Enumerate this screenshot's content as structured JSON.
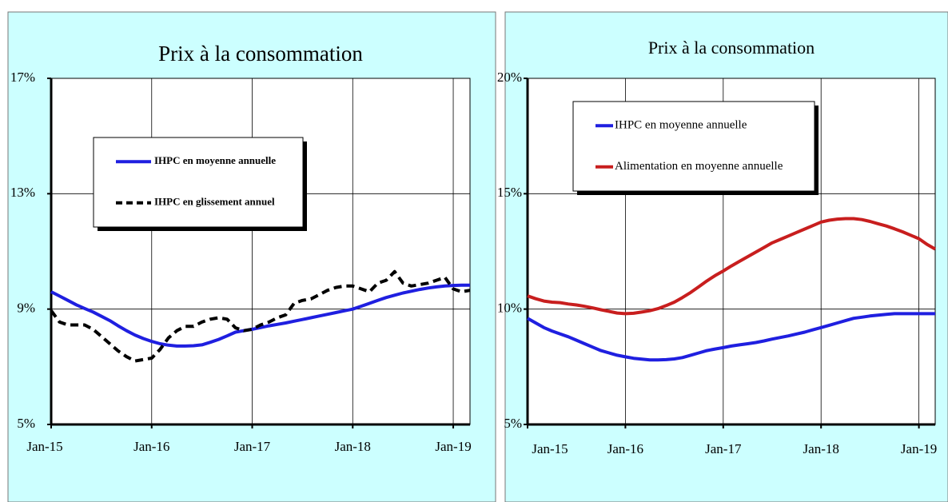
{
  "chart_data": [
    {
      "type": "line",
      "title": "Prix à la consommation",
      "categories": [
        "Jan-15",
        null,
        null,
        null,
        null,
        null,
        null,
        null,
        null,
        null,
        null,
        null,
        "Jan-16",
        null,
        null,
        null,
        null,
        null,
        null,
        null,
        null,
        null,
        null,
        null,
        "Jan-17",
        null,
        null,
        null,
        null,
        null,
        null,
        null,
        null,
        null,
        null,
        null,
        "Jan-18",
        null,
        null,
        null,
        null,
        null,
        null,
        null,
        null,
        null,
        null,
        null,
        "Jan-19",
        null,
        null
      ],
      "ylim": [
        5,
        17
      ],
      "yticks": [
        {
          "value": 5,
          "label": "5%"
        },
        {
          "value": 9,
          "label": "9%"
        },
        {
          "value": 13,
          "label": "13%"
        },
        {
          "value": 17,
          "label": "17%"
        }
      ],
      "grid": true,
      "series": [
        {
          "name": "IHPC en moyenne annuelle",
          "color": "#1f1fe0",
          "dash": false,
          "values": [
            9.6,
            9.45,
            9.3,
            9.15,
            9.02,
            8.9,
            8.75,
            8.6,
            8.42,
            8.25,
            8.1,
            7.98,
            7.88,
            7.8,
            7.75,
            7.72,
            7.72,
            7.73,
            7.76,
            7.85,
            7.95,
            8.07,
            8.2,
            8.25,
            8.3,
            8.36,
            8.42,
            8.47,
            8.52,
            8.58,
            8.64,
            8.7,
            8.76,
            8.82,
            8.88,
            8.94,
            9.0,
            9.1,
            9.2,
            9.3,
            9.4,
            9.48,
            9.56,
            9.62,
            9.68,
            9.73,
            9.77,
            9.8,
            9.82,
            9.83,
            9.83
          ]
        },
        {
          "name": "IHPC en glissement annuel",
          "color": "#000000",
          "dash": true,
          "values": [
            8.95,
            8.55,
            8.45,
            8.45,
            8.45,
            8.3,
            8.05,
            7.8,
            7.55,
            7.35,
            7.2,
            7.25,
            7.3,
            7.6,
            8.0,
            8.25,
            8.4,
            8.4,
            8.55,
            8.65,
            8.7,
            8.65,
            8.35,
            8.25,
            8.3,
            8.45,
            8.55,
            8.7,
            8.8,
            9.2,
            9.3,
            9.35,
            9.5,
            9.65,
            9.75,
            9.8,
            9.8,
            9.7,
            9.6,
            9.9,
            10.0,
            10.3,
            9.9,
            9.8,
            9.85,
            9.9,
            10.0,
            10.1,
            9.7,
            9.6,
            9.65
          ]
        }
      ]
    },
    {
      "type": "line",
      "title": "Prix à la consommation",
      "categories": [
        "Jan-15",
        null,
        null,
        null,
        null,
        null,
        null,
        null,
        null,
        null,
        null,
        null,
        "Jan-16",
        null,
        null,
        null,
        null,
        null,
        null,
        null,
        null,
        null,
        null,
        null,
        "Jan-17",
        null,
        null,
        null,
        null,
        null,
        null,
        null,
        null,
        null,
        null,
        null,
        "Jan-18",
        null,
        null,
        null,
        null,
        null,
        null,
        null,
        null,
        null,
        null,
        null,
        "Jan-19",
        null,
        null
      ],
      "ylim": [
        5,
        20
      ],
      "yticks": [
        {
          "value": 5,
          "label": "5%"
        },
        {
          "value": 10,
          "label": "10%"
        },
        {
          "value": 15,
          "label": "15%"
        },
        {
          "value": 20,
          "label": "20%"
        }
      ],
      "grid": true,
      "series": [
        {
          "name": "IHPC en moyenne annuelle",
          "color": "#1f1fe0",
          "dash": false,
          "values": [
            9.6,
            9.4,
            9.2,
            9.05,
            8.92,
            8.8,
            8.65,
            8.5,
            8.35,
            8.2,
            8.1,
            8.0,
            7.93,
            7.87,
            7.83,
            7.8,
            7.8,
            7.81,
            7.84,
            7.9,
            8.0,
            8.1,
            8.2,
            8.27,
            8.33,
            8.4,
            8.45,
            8.5,
            8.55,
            8.62,
            8.7,
            8.77,
            8.84,
            8.92,
            9.0,
            9.1,
            9.2,
            9.3,
            9.4,
            9.5,
            9.6,
            9.65,
            9.7,
            9.74,
            9.77,
            9.8,
            9.8,
            9.8,
            9.8,
            9.8,
            9.8
          ]
        },
        {
          "name": "Alimentation en moyenne annuelle",
          "color": "#c81e1e",
          "dash": false,
          "values": [
            10.57,
            10.45,
            10.35,
            10.3,
            10.28,
            10.22,
            10.18,
            10.12,
            10.05,
            9.97,
            9.9,
            9.83,
            9.8,
            9.82,
            9.87,
            9.93,
            10.02,
            10.15,
            10.3,
            10.5,
            10.72,
            10.97,
            11.22,
            11.45,
            11.65,
            11.87,
            12.07,
            12.27,
            12.47,
            12.67,
            12.87,
            13.02,
            13.17,
            13.32,
            13.47,
            13.62,
            13.77,
            13.85,
            13.9,
            13.92,
            13.92,
            13.88,
            13.8,
            13.7,
            13.6,
            13.48,
            13.35,
            13.2,
            13.05,
            12.8,
            12.6
          ]
        }
      ]
    }
  ]
}
